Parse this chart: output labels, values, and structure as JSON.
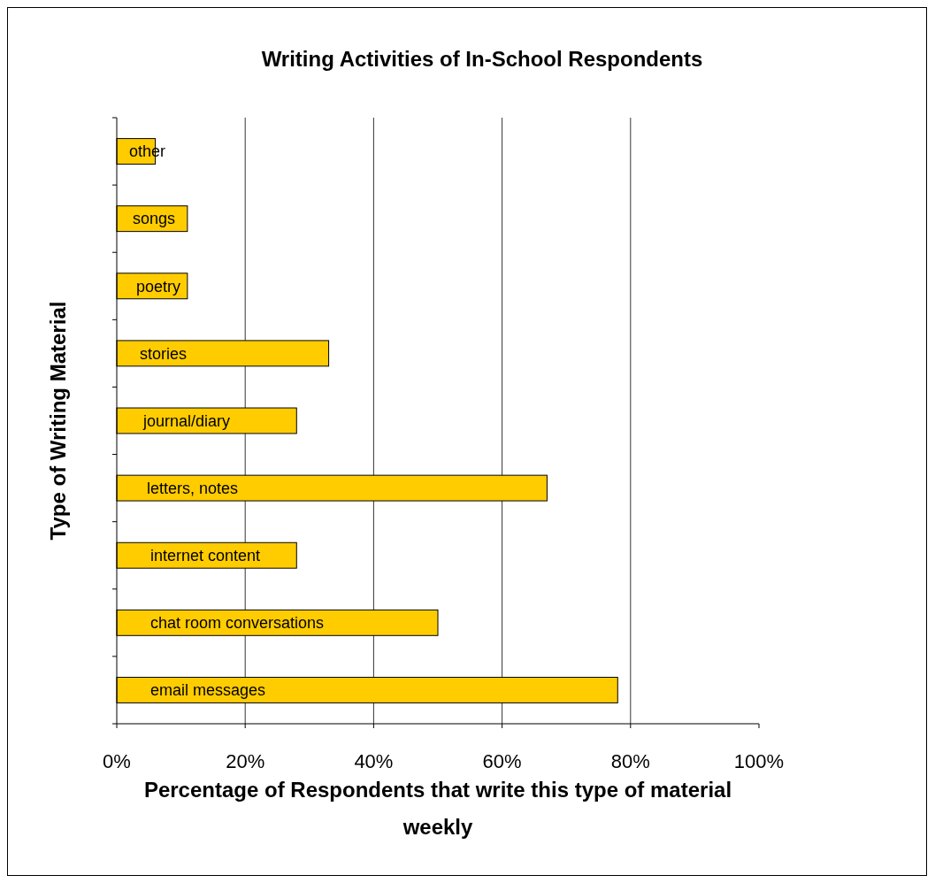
{
  "chart_data": {
    "type": "bar",
    "orientation": "horizontal",
    "title": "Writing Activities of In-School Respondents",
    "xlabel": "Percentage of Respondents that write this type of material weekly",
    "ylabel": "Type of Writing Material",
    "categories": [
      "other",
      "songs",
      "poetry",
      "stories",
      "journal/diary",
      "letters, notes",
      "internet content",
      "chat room conversations",
      "email messages"
    ],
    "values": [
      6,
      11,
      11,
      33,
      28,
      67,
      28,
      50,
      78
    ],
    "color": "#ffcc00",
    "xlim": [
      0,
      100
    ],
    "xticks": [
      {
        "value": 0,
        "label": "0%"
      },
      {
        "value": 20,
        "label": "20%"
      },
      {
        "value": 40,
        "label": "40%"
      },
      {
        "value": 60,
        "label": "60%"
      },
      {
        "value": 80,
        "label": "80%"
      },
      {
        "value": 100,
        "label": "100%"
      }
    ],
    "grid": "x",
    "tick_labels": "x"
  }
}
